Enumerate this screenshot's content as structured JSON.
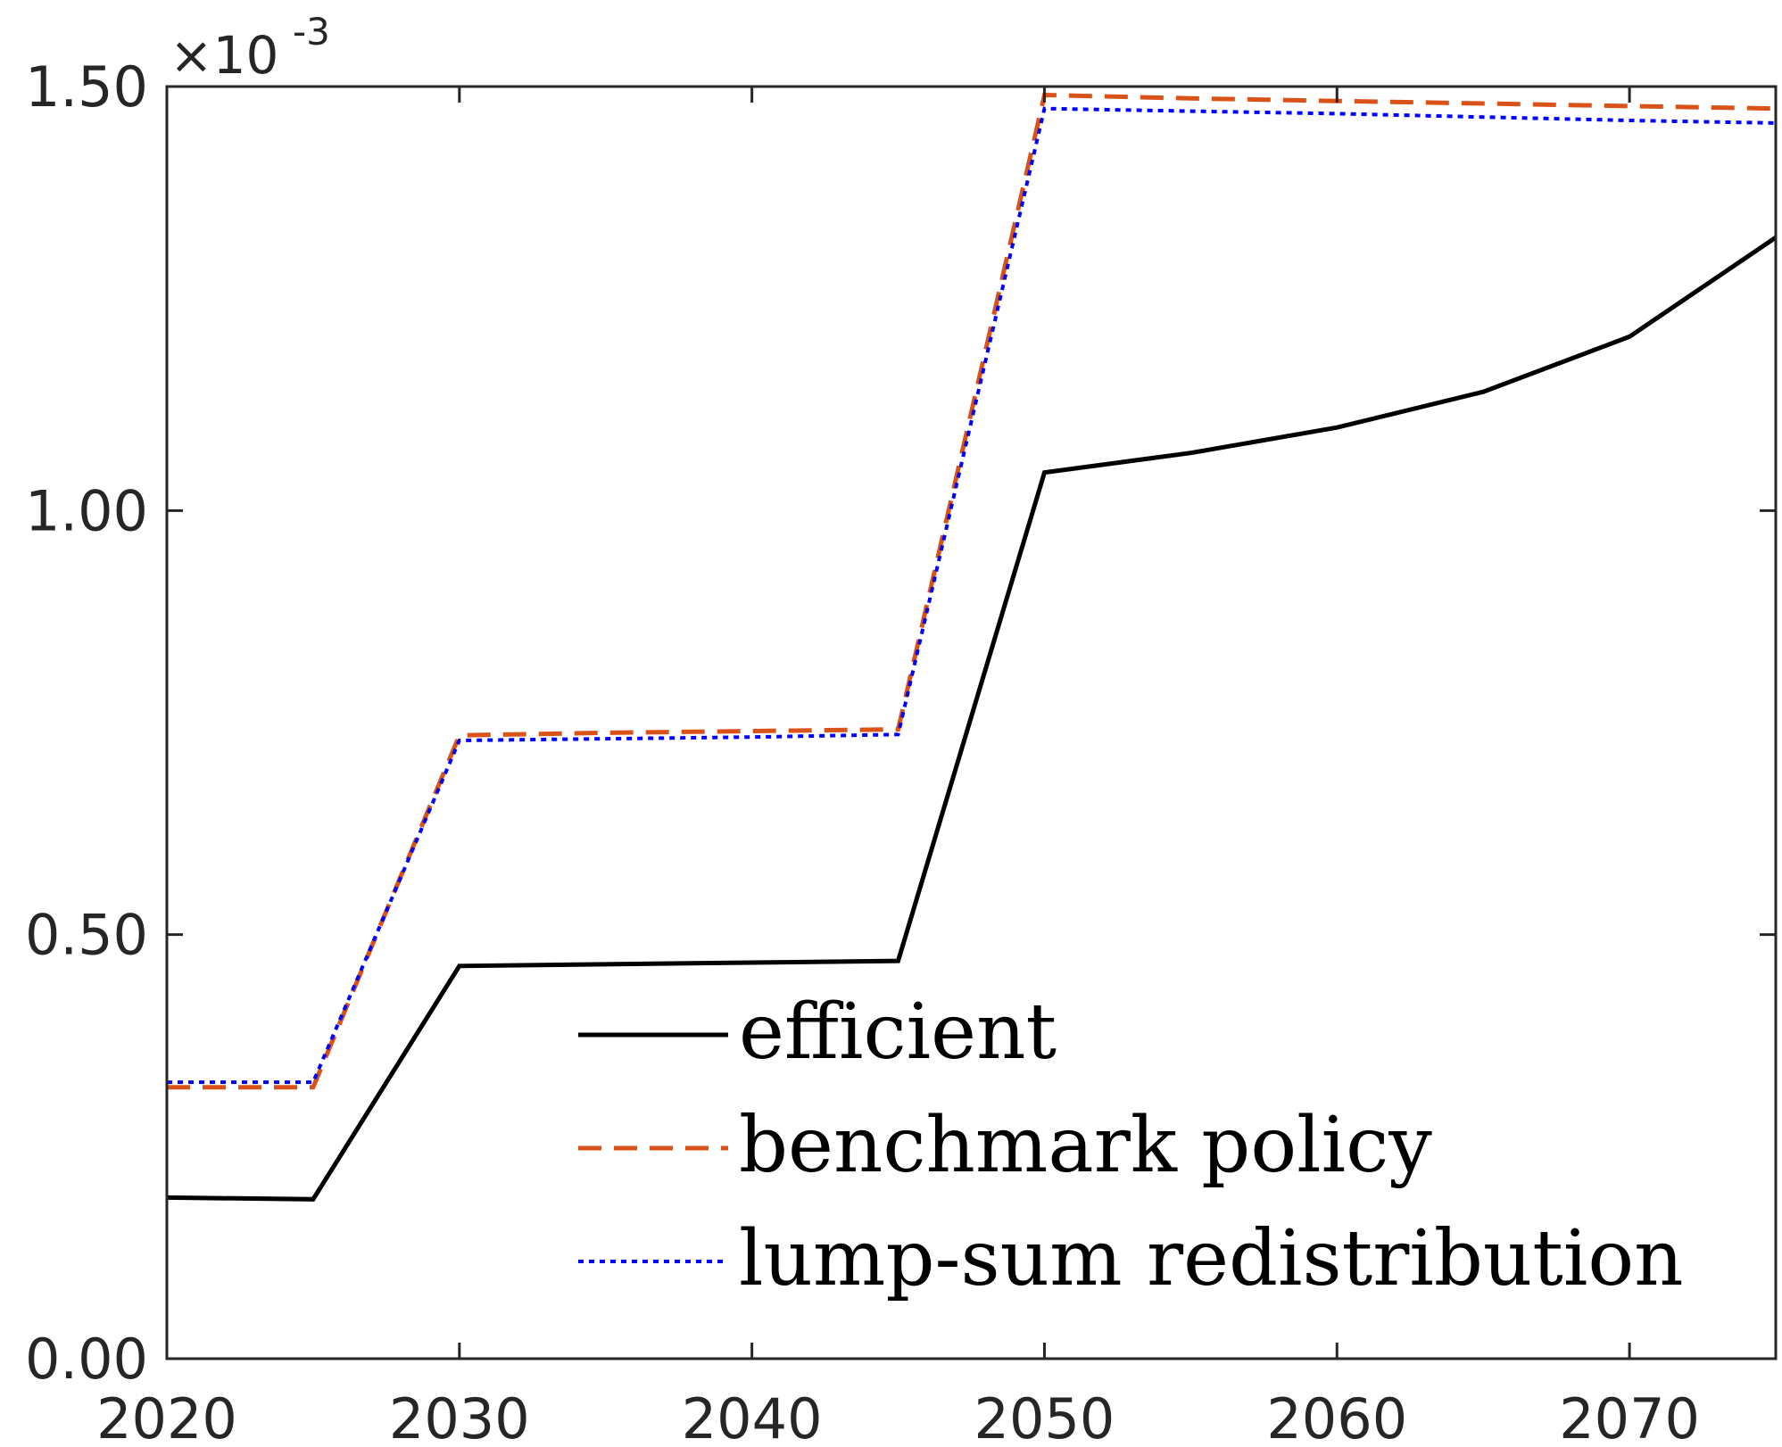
{
  "chart_data": {
    "type": "line",
    "title": "",
    "xlabel": "",
    "ylabel": "",
    "y_exponent_label": "×10",
    "y_exponent_power": "-3",
    "xlim": [
      2020,
      2075
    ],
    "ylim": [
      0,
      1.5
    ],
    "x_ticks": [
      2020,
      2030,
      2040,
      2050,
      2060,
      2070
    ],
    "x_tick_labels": [
      "2020",
      "2030",
      "2040",
      "2050",
      "2060",
      "2070"
    ],
    "y_ticks": [
      0,
      0.5,
      1.0,
      1.5
    ],
    "y_tick_labels": [
      "0.00",
      "0.50",
      "1.00",
      "1.50"
    ],
    "x": [
      2020,
      2025,
      2030,
      2035,
      2040,
      2045,
      2050,
      2055,
      2060,
      2065,
      2070,
      2075
    ],
    "series": [
      {
        "name": "efficient",
        "color": "#000000",
        "style": "solid",
        "values": [
          0.19,
          0.188,
          0.463,
          0.465,
          0.467,
          0.469,
          1.045,
          1.068,
          1.098,
          1.14,
          1.205,
          1.322
        ]
      },
      {
        "name": "benchmark policy",
        "color": "#D95319",
        "style": "dashed",
        "values": [
          0.32,
          0.32,
          0.735,
          0.738,
          0.74,
          0.742,
          1.49,
          1.486,
          1.483,
          1.48,
          1.477,
          1.474
        ]
      },
      {
        "name": "lump-sum redistribution",
        "color": "#0000FF",
        "style": "dotted",
        "values": [
          0.326,
          0.326,
          0.729,
          0.731,
          0.733,
          0.736,
          1.474,
          1.471,
          1.468,
          1.464,
          1.46,
          1.457
        ]
      }
    ],
    "grid": false,
    "legend_position": "lower-right"
  }
}
